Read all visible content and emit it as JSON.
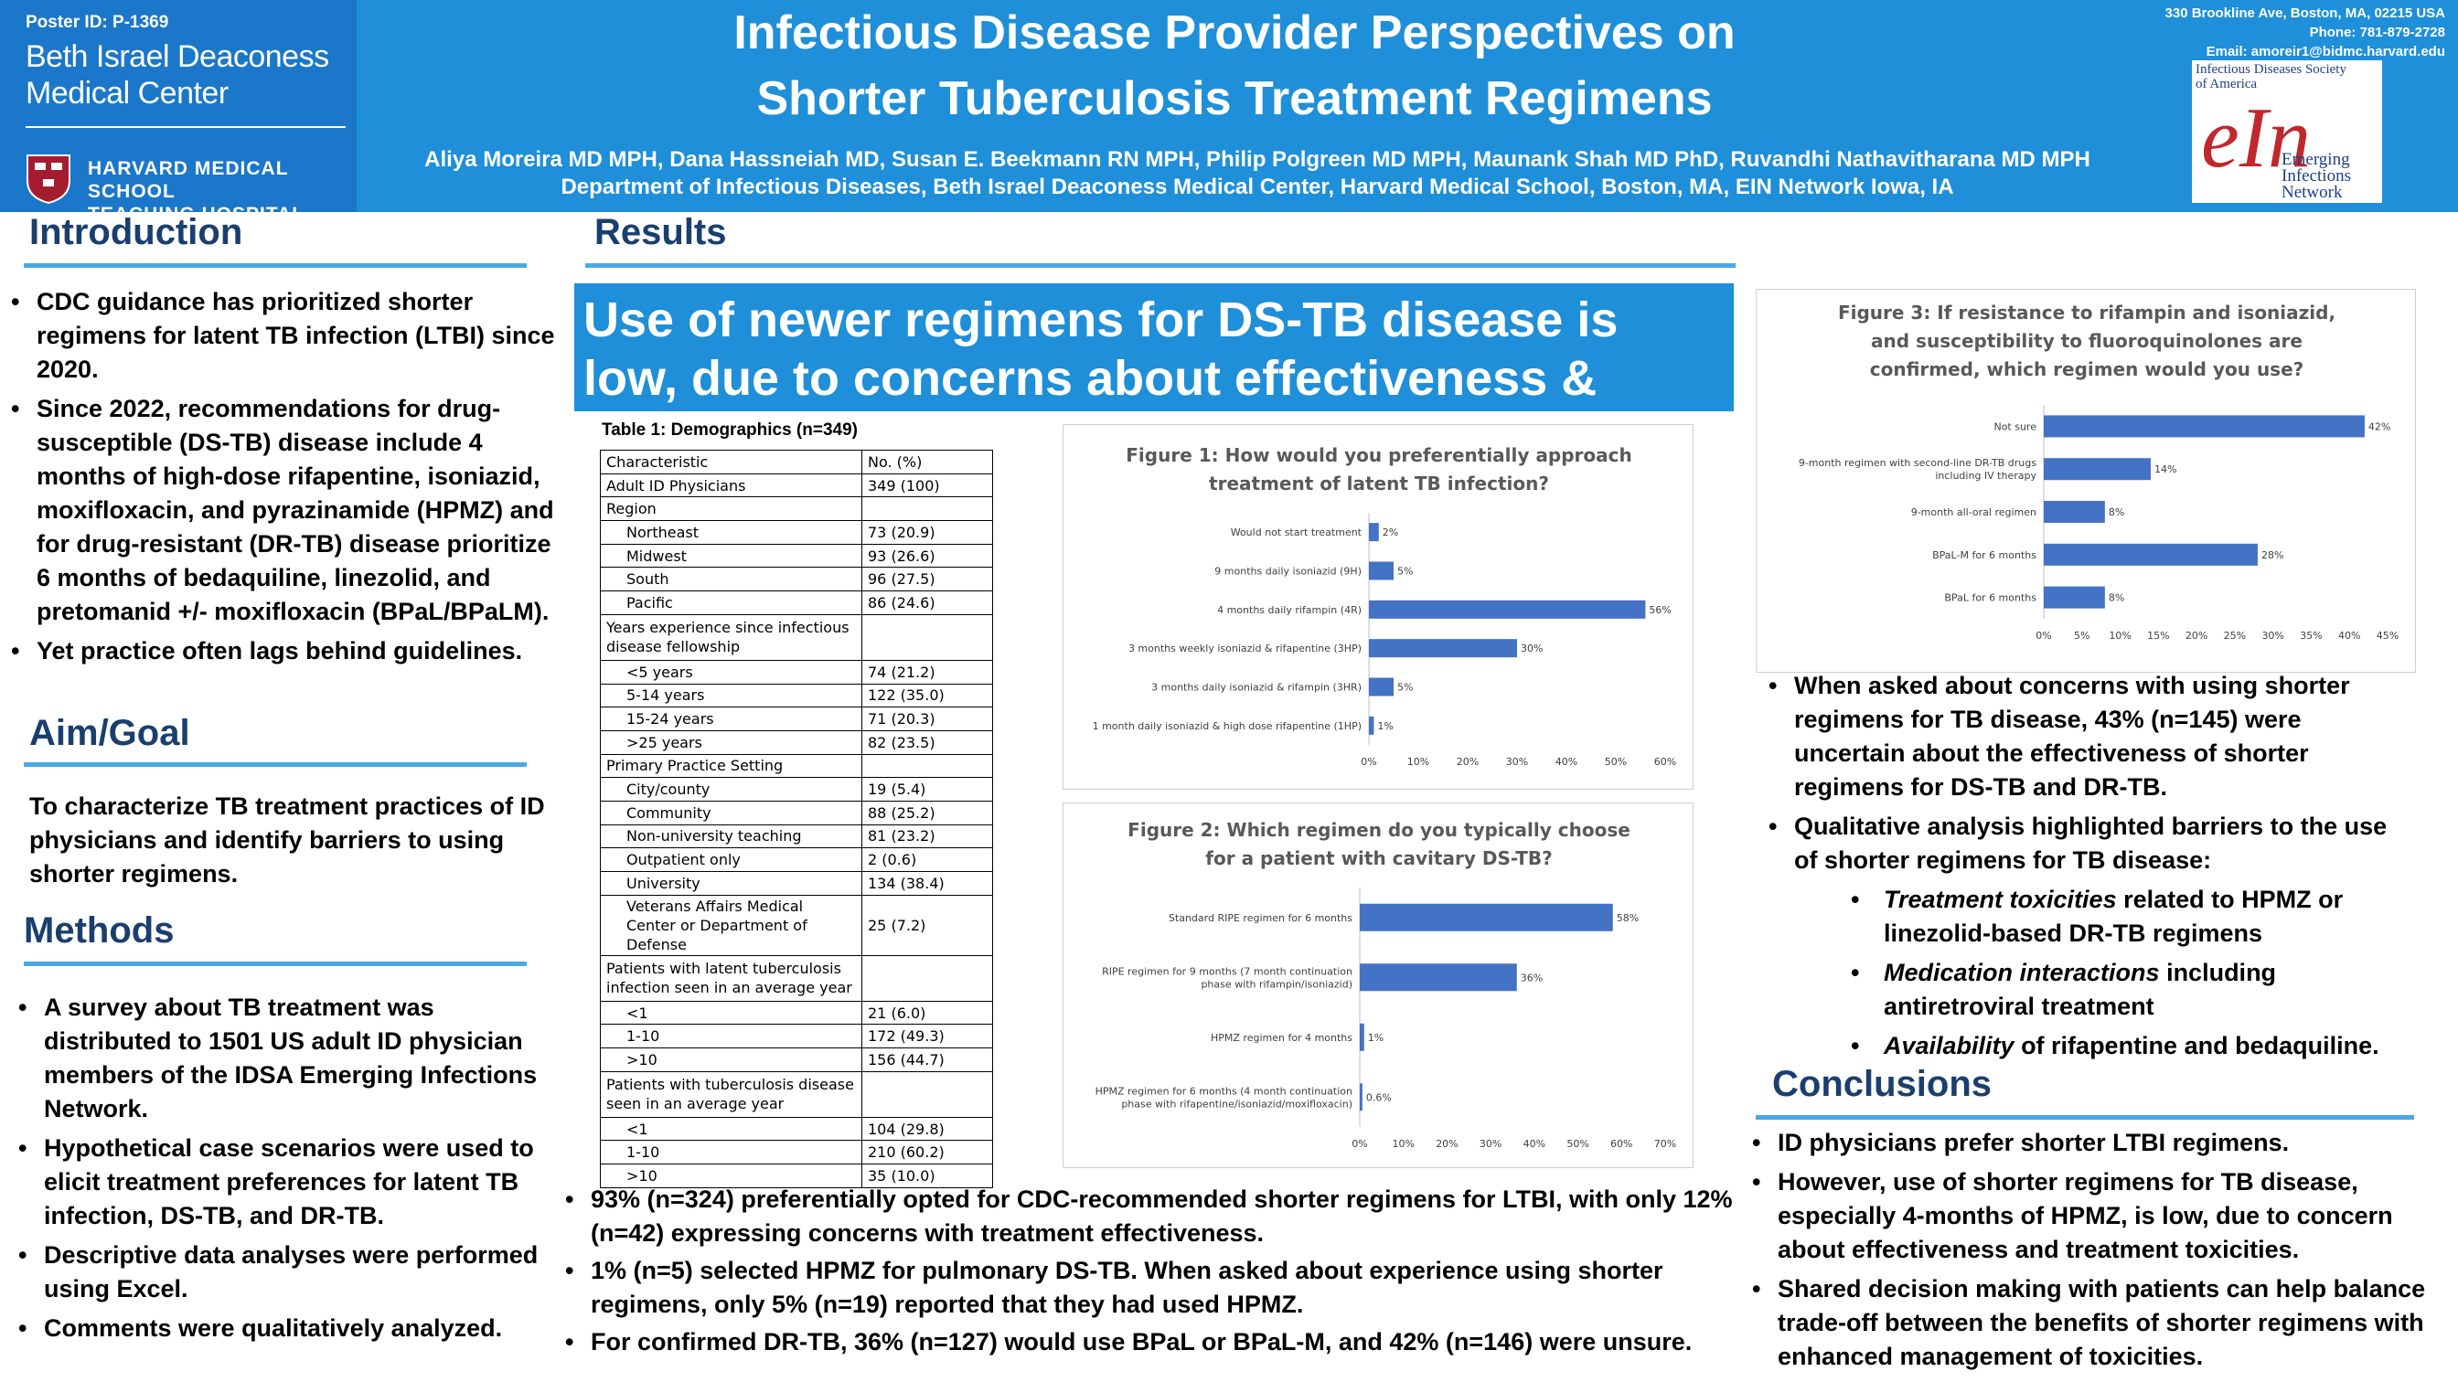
{
  "header": {
    "poster_id": "Poster ID: P-1369",
    "institution_line1": "Beth Israel Deaconess",
    "institution_line2": "Medical Center",
    "hms_line1": "HARVARD MEDICAL SCHOOL",
    "hms_line2": "TEACHING HOSPITAL",
    "title_line1": "Infectious Disease Provider Perspectives on",
    "title_line2": "Shorter Tuberculosis Treatment Regimens",
    "authors": "Aliya Moreira MD MPH, Dana Hassneiah MD, Susan E. Beekmann RN MPH, Philip Polgreen MD MPH, Maunank Shah MD PhD, Ruvandhi Nathavitharana MD MPH",
    "department": "Department of Infectious Diseases, Beth Israel Deaconess Medical Center, Harvard Medical School, Boston, MA, EIN Network Iowa, IA",
    "address": "330 Brookline Ave, Boston, MA, 02215 USA",
    "phone": "Phone: 781-879-2728",
    "email": "Email: amoreir1@bidmc.harvard.edu",
    "ein_top_line1": "Infectious Diseases Society",
    "ein_top_line2": "of America",
    "ein_mark": "eIn",
    "ein_bottom_line1": "Emerging",
    "ein_bottom_line2": "Infections",
    "ein_bottom_line3": "Network"
  },
  "introduction": {
    "heading": "Introduction",
    "bullets": [
      "CDC guidance has prioritized shorter regimens for latent TB infection (LTBI) since 2020.",
      "Since 2022, recommendations for drug-susceptible (DS-TB) disease include 4 months of high-dose rifapentine, isoniazid, moxifloxacin, and pyrazinamide (HPMZ) and for drug-resistant (DR-TB) disease prioritize 6 months of bedaquiline, linezolid, and pretomanid +/- moxifloxacin (BPaL/BPaLM).",
      "Yet practice often lags behind guidelines."
    ]
  },
  "aim": {
    "heading": "Aim/Goal",
    "text": "To characterize TB treatment practices of ID physicians and identify barriers to using shorter regimens."
  },
  "methods": {
    "heading": "Methods",
    "bullets": [
      "A survey about TB treatment was distributed to 1501 US adult ID physician members of the IDSA Emerging Infections Network.",
      "Hypothetical case scenarios were used to elicit treatment preferences for latent TB infection, DS-TB, and DR-TB.",
      "Descriptive data analyses were performed using Excel.",
      "Comments were qualitatively analyzed."
    ]
  },
  "results": {
    "heading": "Results",
    "banner": "Use of newer regimens for DS-TB disease is low, due to concerns about effectiveness & toxicity.",
    "table_title": "Table 1: Demographics (n=349)",
    "table_rows": [
      {
        "label": "Characteristic",
        "value": "No. (%)",
        "indent": false
      },
      {
        "label": "Adult ID Physicians",
        "value": "349 (100)",
        "indent": false
      },
      {
        "label": "Region",
        "value": "",
        "indent": false
      },
      {
        "label": "Northeast",
        "value": "73 (20.9)",
        "indent": true
      },
      {
        "label": "Midwest",
        "value": "93 (26.6)",
        "indent": true
      },
      {
        "label": "South",
        "value": "96 (27.5)",
        "indent": true
      },
      {
        "label": "Pacific",
        "value": "86 (24.6)",
        "indent": true
      },
      {
        "label": "Years experience since infectious disease fellowship",
        "value": "",
        "indent": false,
        "tall": true
      },
      {
        "label": "<5 years",
        "value": "74 (21.2)",
        "indent": true
      },
      {
        "label": "5-14 years",
        "value": "122 (35.0)",
        "indent": true
      },
      {
        "label": "15-24 years",
        "value": "71 (20.3)",
        "indent": true
      },
      {
        "label": ">25 years",
        "value": "82 (23.5)",
        "indent": true
      },
      {
        "label": "Primary Practice Setting",
        "value": "",
        "indent": false
      },
      {
        "label": "City/county",
        "value": "19 (5.4)",
        "indent": true
      },
      {
        "label": "Community",
        "value": "88 (25.2)",
        "indent": true
      },
      {
        "label": "Non-university teaching",
        "value": "81 (23.2)",
        "indent": true
      },
      {
        "label": "Outpatient only",
        "value": "2 (0.6)",
        "indent": true
      },
      {
        "label": "University",
        "value": "134 (38.4)",
        "indent": true
      },
      {
        "label": "Veterans Affairs Medical Center or Department of Defense",
        "value": "25 (7.2)",
        "indent": true,
        "tall": true
      },
      {
        "label": "Patients with latent tuberculosis infection seen in an average year",
        "value": "",
        "indent": false,
        "tall": true
      },
      {
        "label": "<1",
        "value": "21 (6.0)",
        "indent": true
      },
      {
        "label": "1-10",
        "value": "172 (49.3)",
        "indent": true
      },
      {
        "label": ">10",
        "value": "156 (44.7)",
        "indent": true
      },
      {
        "label": "Patients with tuberculosis disease seen in an average year",
        "value": "",
        "indent": false,
        "tall": true
      },
      {
        "label": "<1",
        "value": "104 (29.8)",
        "indent": true
      },
      {
        "label": "1-10",
        "value": "210 (60.2)",
        "indent": true
      },
      {
        "label": ">10",
        "value": "35 (10.0)",
        "indent": true
      }
    ],
    "bullets": [
      "93% (n=324) preferentially opted for CDC-recommended shorter regimens for LTBI, with only 12% (n=42) expressing concerns with treatment effectiveness.",
      "1% (n=5) selected HPMZ for pulmonary DS-TB. When asked about experience using shorter regimens, only 5% (n=19) reported that they had used HPMZ.",
      "For confirmed DR-TB, 36% (n=127) would use BPaL or BPaL-M, and 42% (n=146) were unsure."
    ]
  },
  "right_column": {
    "bullets": [
      "When asked about concerns with using shorter regimens for TB disease, 43% (n=145) were uncertain about the effectiveness of shorter regimens for DS-TB and DR-TB.",
      "Qualitative analysis highlighted barriers to the use of shorter regimens for TB disease:"
    ],
    "sub_bullets": [
      {
        "em": "Treatment toxicities",
        "rest": " related to HPMZ or linezolid-based DR-TB regimens"
      },
      {
        "em": "Medication interactions",
        "rest": " including antiretroviral treatment"
      },
      {
        "em": "Availability",
        "rest": " of rifapentine and bedaquiline."
      }
    ]
  },
  "conclusions": {
    "heading": "Conclusions",
    "bullets": [
      "ID physicians prefer shorter LTBI regimens.",
      "However, use of shorter regimens for TB disease, especially 4-months of HPMZ, is low, due to concern about effectiveness and treatment toxicities.",
      "Shared decision making with patients can help balance trade-off between the benefits of shorter regimens with enhanced management of toxicities."
    ]
  },
  "colors": {
    "header_blue": "#1e8fd8",
    "heading_navy": "#1a3f6f",
    "bar_blue": "#4472c4"
  },
  "chart_data": [
    {
      "type": "bar",
      "orientation": "horizontal",
      "title_line1": "Figure 1: How would you preferentially approach",
      "title_line2": "treatment of latent TB infection?",
      "categories": [
        "Would not start treatment",
        "9 months daily isoniazid (9H)",
        "4 months daily rifampin (4R)",
        "3 months weekly isoniazid & rifapentine (3HP)",
        "3 months daily isoniazid & rifampin (3HR)",
        "1 month daily isoniazid & high dose rifapentine (1HP)"
      ],
      "values": [
        2,
        5,
        56,
        30,
        5,
        1
      ],
      "value_labels": [
        "2%",
        "5%",
        "56%",
        "30%",
        "5%",
        "1%"
      ],
      "xlim": [
        0,
        60
      ],
      "ticks": [
        "0%",
        "10%",
        "20%",
        "30%",
        "40%",
        "50%",
        "60%"
      ],
      "grid": false
    },
    {
      "type": "bar",
      "orientation": "horizontal",
      "title_line1": "Figure 2: Which regimen do you typically choose",
      "title_line2": "for a patient with cavitary DS-TB?",
      "categories": [
        "Standard RIPE regimen for 6 months",
        "RIPE regimen for 9 months (7 month continuation phase with rifampin/isoniazid)",
        "HPMZ regimen for 4 months",
        "HPMZ regimen for 6 months (4 month continuation phase with rifapentine/isoniazid/moxifloxacin)"
      ],
      "category_lines": [
        [
          "Standard RIPE regimen for 6 months"
        ],
        [
          "RIPE regimen for 9 months (7 month continuation",
          "phase with rifampin/isoniazid)"
        ],
        [
          "HPMZ regimen for 4 months"
        ],
        [
          "HPMZ regimen for 6 months (4 month continuation",
          "phase with rifapentine/isoniazid/moxifloxacin)"
        ]
      ],
      "values": [
        58,
        36,
        1,
        0.6
      ],
      "value_labels": [
        "58%",
        "36%",
        "1%",
        "0.6%"
      ],
      "xlim": [
        0,
        70
      ],
      "ticks": [
        "0%",
        "10%",
        "20%",
        "30%",
        "40%",
        "50%",
        "60%",
        "70%"
      ],
      "grid": false
    },
    {
      "type": "bar",
      "orientation": "horizontal",
      "title_line1": "Figure 3: If resistance to rifampin and isoniazid,",
      "title_line2": "and susceptibility to fluoroquinolones are",
      "title_line3": "confirmed, which regimen would you use?",
      "categories": [
        "Not sure",
        "9-month regimen with second-line DR-TB drugs including IV therapy",
        "9-month all-oral regimen",
        "BPaL-M for 6 months",
        "BPaL for 6 months"
      ],
      "category_lines": [
        [
          "Not sure"
        ],
        [
          "9-month regimen with second-line DR-TB drugs",
          "including IV therapy"
        ],
        [
          "9-month all-oral regimen"
        ],
        [
          "BPaL-M for 6 months"
        ],
        [
          "BPaL for 6 months"
        ]
      ],
      "values": [
        42,
        14,
        8,
        28,
        8
      ],
      "value_labels": [
        "42%",
        "14%",
        "8%",
        "28%",
        "8%"
      ],
      "xlim": [
        0,
        45
      ],
      "ticks": [
        "0%",
        "5%",
        "10%",
        "15%",
        "20%",
        "25%",
        "30%",
        "35%",
        "40%",
        "45%"
      ],
      "grid": false
    }
  ]
}
